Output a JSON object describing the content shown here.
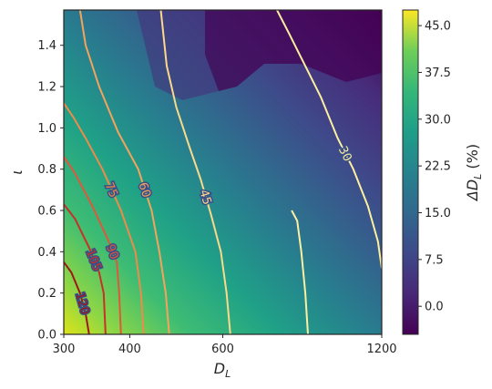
{
  "chart_data": {
    "type": "heatmap",
    "subtype": "filled-contour-with-line-contours",
    "title": "",
    "xlabel": "D_L",
    "ylabel": "ι",
    "x_scale": "log",
    "x_ticks": [
      300,
      400,
      600,
      1200
    ],
    "x_tick_labels": [
      "300",
      "400",
      "600",
      "1200"
    ],
    "xlim": [
      300,
      1200
    ],
    "y_ticks": [
      0.0,
      0.2,
      0.4,
      0.6,
      0.8,
      1.0,
      1.2,
      1.4
    ],
    "y_tick_labels": [
      "0.0",
      "0.2",
      "0.4",
      "0.6",
      "0.8",
      "1.0",
      "1.2",
      "1.4"
    ],
    "ylim": [
      0,
      1.5708
    ],
    "grid": false,
    "colorscale": "viridis",
    "colorbar": {
      "label": "ΔD_L (%)",
      "range": [
        -4.5,
        47.5
      ],
      "ticks": [
        0.0,
        7.5,
        15.0,
        22.5,
        30.0,
        37.5,
        45.0
      ],
      "tick_labels": [
        "0.0",
        "7.5",
        "15.0",
        "22.5",
        "30.0",
        "37.5",
        "45.0"
      ]
    },
    "contour_lines": [
      {
        "level": 30,
        "label": "30",
        "color": "#fcefa0",
        "points": [
          [
            1200,
            0.32
          ],
          [
            1180,
            0.45
          ],
          [
            1130,
            0.62
          ],
          [
            1060,
            0.8
          ],
          [
            990,
            0.95
          ],
          [
            920,
            1.15
          ],
          [
            860,
            1.3
          ],
          [
            800,
            1.46
          ],
          [
            760,
            1.5708
          ]
        ]
      },
      {
        "level": 30,
        "label": "",
        "color": "#fcefa0",
        "points": [
          [
            870,
            0
          ],
          [
            860,
            0.2
          ],
          [
            845,
            0.4
          ],
          [
            830,
            0.55
          ],
          [
            810,
            0.6
          ]
        ]
      },
      {
        "level": 45,
        "label": "45",
        "color": "#fbd98a",
        "points": [
          [
            620,
            0
          ],
          [
            610,
            0.2
          ],
          [
            595,
            0.4
          ],
          [
            570,
            0.58
          ],
          [
            545,
            0.75
          ],
          [
            520,
            0.9
          ],
          [
            490,
            1.1
          ],
          [
            470,
            1.3
          ],
          [
            458,
            1.5708
          ]
        ]
      },
      {
        "level": 60,
        "label": "60",
        "color": "#f5a35c",
        "points": [
          [
            475,
            0
          ],
          [
            468,
            0.2
          ],
          [
            455,
            0.4
          ],
          [
            440,
            0.6
          ],
          [
            415,
            0.8
          ],
          [
            380,
            0.98
          ],
          [
            350,
            1.2
          ],
          [
            330,
            1.4
          ],
          [
            322,
            1.5708
          ]
        ]
      },
      {
        "level": 75,
        "label": "75",
        "color": "#ee8a4a",
        "points": [
          [
            425,
            0
          ],
          [
            420,
            0.2
          ],
          [
            410,
            0.4
          ],
          [
            385,
            0.6
          ],
          [
            355,
            0.8
          ],
          [
            330,
            0.95
          ],
          [
            313,
            1.05
          ],
          [
            300,
            1.12
          ]
        ]
      },
      {
        "level": 90,
        "label": "90",
        "color": "#e2573a",
        "points": [
          [
            385,
            0
          ],
          [
            382,
            0.2
          ],
          [
            378,
            0.35
          ],
          [
            365,
            0.45
          ],
          [
            340,
            0.62
          ],
          [
            315,
            0.78
          ],
          [
            300,
            0.86
          ]
        ]
      },
      {
        "level": 105,
        "label": "105",
        "color": "#c63128",
        "points": [
          [
            360,
            0
          ],
          [
            357,
            0.2
          ],
          [
            350,
            0.3
          ],
          [
            335,
            0.42
          ],
          [
            315,
            0.56
          ],
          [
            300,
            0.63
          ]
        ]
      },
      {
        "level": 120,
        "label": "120",
        "color": "#9e1717",
        "points": [
          [
            335,
            0
          ],
          [
            330,
            0.1
          ],
          [
            322,
            0.2
          ],
          [
            310,
            0.3
          ],
          [
            300,
            0.35
          ]
        ]
      }
    ]
  }
}
